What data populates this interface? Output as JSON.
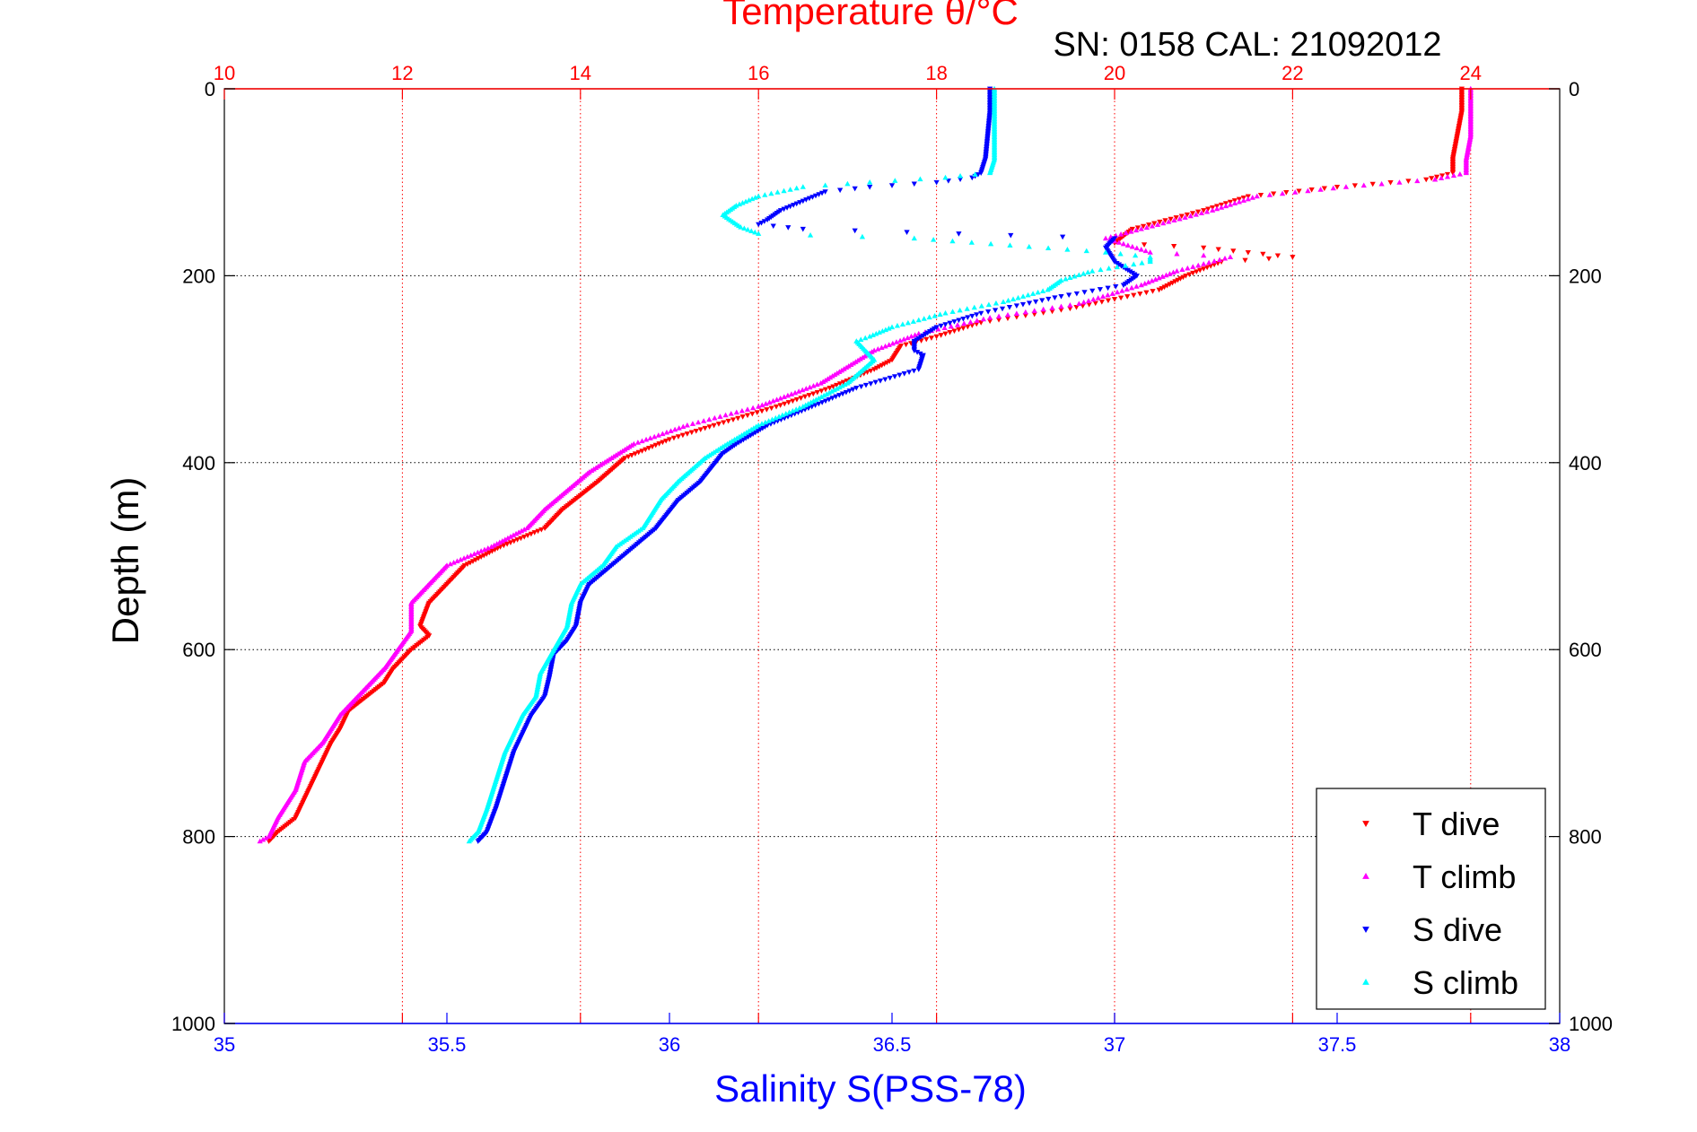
{
  "chart_data": {
    "type": "scatter",
    "title": "Temperature θ/°C",
    "subtitle": "SN: 0158  CAL: 21092012",
    "xlabel": "Salinity S(PSS-78)",
    "ylabel": "Depth (m)",
    "x_top_ticks": [
      "10",
      "12",
      "14",
      "16",
      "18",
      "20",
      "22",
      "24"
    ],
    "x_top_lim": [
      10,
      25
    ],
    "x_bottom_ticks": [
      "35",
      "35.5",
      "36",
      "36.5",
      "37",
      "37.5",
      "38"
    ],
    "x_bottom_lim": [
      35,
      38
    ],
    "y_ticks": [
      "0",
      "200",
      "400",
      "600",
      "800",
      "1000"
    ],
    "y_lim": [
      0,
      1000
    ],
    "y_reversed": true,
    "grid": true,
    "legend_position": "bottom-right",
    "colors": {
      "temperature_axis": "#ff0000",
      "salinity_axis": "#0000ff",
      "t_dive": "#ff0000",
      "t_climb": "#ff00ff",
      "s_dive": "#0000ff",
      "s_climb": "#00ffff"
    },
    "series": [
      {
        "name": "T dive",
        "axis": "temperature",
        "marker": "triangle-down",
        "points": [
          [
            23.9,
            0
          ],
          [
            23.9,
            25
          ],
          [
            23.85,
            50
          ],
          [
            23.8,
            75
          ],
          [
            23.8,
            90
          ],
          [
            23.5,
            97
          ],
          [
            22.5,
            105
          ],
          [
            21.5,
            115
          ],
          [
            21,
            130
          ],
          [
            20.2,
            150
          ],
          [
            20,
            165
          ],
          [
            21,
            170
          ],
          [
            21.5,
            175
          ],
          [
            22,
            180
          ],
          [
            21.2,
            185
          ],
          [
            20.8,
            200
          ],
          [
            20.5,
            215
          ],
          [
            20,
            225
          ],
          [
            19.5,
            235
          ],
          [
            18.5,
            250
          ],
          [
            18,
            265
          ],
          [
            17.6,
            275
          ],
          [
            17.5,
            290
          ],
          [
            17.3,
            300
          ],
          [
            16.8,
            320
          ],
          [
            16.2,
            340
          ],
          [
            15.5,
            360
          ],
          [
            15,
            375
          ],
          [
            14.5,
            395
          ],
          [
            14.2,
            420
          ],
          [
            13.8,
            450
          ],
          [
            13.6,
            470
          ],
          [
            13.1,
            490
          ],
          [
            12.7,
            510
          ],
          [
            12.5,
            530
          ],
          [
            12.3,
            550
          ],
          [
            12.2,
            575
          ],
          [
            12.3,
            585
          ],
          [
            12.1,
            600
          ],
          [
            11.9,
            620
          ],
          [
            11.8,
            635
          ],
          [
            11.6,
            650
          ],
          [
            11.4,
            665
          ],
          [
            11.3,
            685
          ],
          [
            11.2,
            700
          ],
          [
            11.1,
            720
          ],
          [
            11,
            740
          ],
          [
            10.9,
            760
          ],
          [
            10.8,
            780
          ],
          [
            10.6,
            795
          ],
          [
            10.5,
            805
          ]
        ]
      },
      {
        "name": "T climb",
        "axis": "temperature",
        "marker": "triangle-up",
        "points": [
          [
            24,
            0
          ],
          [
            24,
            25
          ],
          [
            24,
            50
          ],
          [
            23.95,
            75
          ],
          [
            23.95,
            90
          ],
          [
            23.6,
            97
          ],
          [
            22.6,
            105
          ],
          [
            21.6,
            115
          ],
          [
            21.1,
            130
          ],
          [
            20.3,
            150
          ],
          [
            19.9,
            160
          ],
          [
            20.4,
            175
          ],
          [
            21.3,
            180
          ],
          [
            20.7,
            195
          ],
          [
            20.3,
            210
          ],
          [
            19.6,
            230
          ],
          [
            18.6,
            245
          ],
          [
            17.8,
            262
          ],
          [
            17.3,
            280
          ],
          [
            16.7,
            315
          ],
          [
            16,
            340
          ],
          [
            15.2,
            360
          ],
          [
            14.6,
            380
          ],
          [
            14.1,
            410
          ],
          [
            13.6,
            450
          ],
          [
            13.4,
            470
          ],
          [
            13,
            490
          ],
          [
            12.5,
            510
          ],
          [
            12.3,
            530
          ],
          [
            12.1,
            550
          ],
          [
            12.1,
            580
          ],
          [
            11.8,
            620
          ],
          [
            11.5,
            650
          ],
          [
            11.3,
            670
          ],
          [
            11.1,
            700
          ],
          [
            10.9,
            720
          ],
          [
            10.8,
            750
          ],
          [
            10.6,
            780
          ],
          [
            10.5,
            800
          ],
          [
            10.4,
            805
          ]
        ]
      },
      {
        "name": "S dive",
        "axis": "salinity",
        "marker": "triangle-down",
        "points": [
          [
            36.72,
            0
          ],
          [
            36.72,
            25
          ],
          [
            36.715,
            50
          ],
          [
            36.71,
            75
          ],
          [
            36.7,
            90
          ],
          [
            36.68,
            95
          ],
          [
            36.6,
            100
          ],
          [
            36.45,
            105
          ],
          [
            36.35,
            110
          ],
          [
            36.3,
            120
          ],
          [
            36.25,
            130
          ],
          [
            36.22,
            140
          ],
          [
            36.2,
            145
          ],
          [
            36.3,
            150
          ],
          [
            36.65,
            155
          ],
          [
            37,
            160
          ],
          [
            36.98,
            170
          ],
          [
            37,
            185
          ],
          [
            37.05,
            200
          ],
          [
            37.02,
            210
          ],
          [
            36.88,
            222
          ],
          [
            36.78,
            232
          ],
          [
            36.7,
            240
          ],
          [
            36.6,
            255
          ],
          [
            36.55,
            270
          ],
          [
            36.55,
            280
          ],
          [
            36.57,
            285
          ],
          [
            36.56,
            300
          ],
          [
            36.42,
            320
          ],
          [
            36.32,
            340
          ],
          [
            36.22,
            360
          ],
          [
            36.15,
            380
          ],
          [
            36.12,
            390
          ],
          [
            36.07,
            420
          ],
          [
            36.02,
            440
          ],
          [
            35.97,
            470
          ],
          [
            35.92,
            490
          ],
          [
            35.87,
            510
          ],
          [
            35.82,
            530
          ],
          [
            35.8,
            550
          ],
          [
            35.79,
            575
          ],
          [
            35.77,
            590
          ],
          [
            35.74,
            605
          ],
          [
            35.73,
            630
          ],
          [
            35.72,
            650
          ],
          [
            35.69,
            670
          ],
          [
            35.67,
            690
          ],
          [
            35.65,
            710
          ],
          [
            35.63,
            740
          ],
          [
            35.61,
            770
          ],
          [
            35.59,
            795
          ],
          [
            35.57,
            805
          ]
        ]
      },
      {
        "name": "S climb",
        "axis": "salinity",
        "marker": "triangle-up",
        "points": [
          [
            36.73,
            0
          ],
          [
            36.73,
            25
          ],
          [
            36.73,
            50
          ],
          [
            36.73,
            75
          ],
          [
            36.72,
            90
          ],
          [
            36.62,
            95
          ],
          [
            36.45,
            100
          ],
          [
            36.3,
            105
          ],
          [
            36.2,
            115
          ],
          [
            36.15,
            125
          ],
          [
            36.12,
            135
          ],
          [
            36.16,
            148
          ],
          [
            36.2,
            155
          ],
          [
            36.55,
            160
          ],
          [
            36.98,
            175
          ],
          [
            37.08,
            180
          ],
          [
            37.08,
            185
          ],
          [
            36.95,
            195
          ],
          [
            36.88,
            205
          ],
          [
            36.85,
            215
          ],
          [
            36.75,
            228
          ],
          [
            36.62,
            240
          ],
          [
            36.5,
            255
          ],
          [
            36.45,
            265
          ],
          [
            36.42,
            270
          ],
          [
            36.46,
            290
          ],
          [
            36.4,
            315
          ],
          [
            36.3,
            340
          ],
          [
            36.2,
            360
          ],
          [
            36.13,
            380
          ],
          [
            36.08,
            395
          ],
          [
            36.02,
            420
          ],
          [
            35.98,
            440
          ],
          [
            35.94,
            470
          ],
          [
            35.88,
            490
          ],
          [
            35.85,
            510
          ],
          [
            35.8,
            530
          ],
          [
            35.78,
            550
          ],
          [
            35.77,
            575
          ],
          [
            35.74,
            600
          ],
          [
            35.71,
            625
          ],
          [
            35.7,
            650
          ],
          [
            35.67,
            670
          ],
          [
            35.65,
            690
          ],
          [
            35.63,
            710
          ],
          [
            35.61,
            740
          ],
          [
            35.59,
            770
          ],
          [
            35.57,
            795
          ],
          [
            35.55,
            805
          ]
        ]
      }
    ]
  }
}
